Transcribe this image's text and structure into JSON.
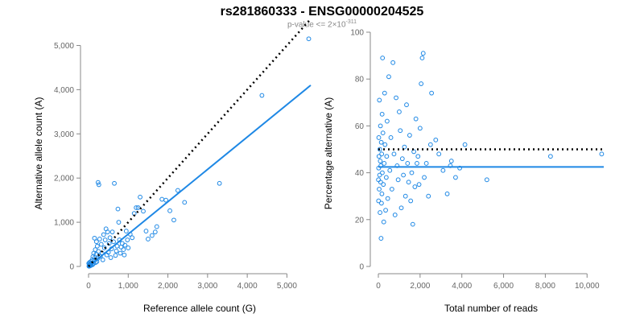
{
  "header": {
    "title": "rs281860333 - ENSG00000204525",
    "subtitle_base": "p-value <= 2×10",
    "subtitle_exp": "-311"
  },
  "colors": {
    "points": "#1e88e5",
    "fit": "#1e88e5",
    "reference": "#000000",
    "axis": "#888888"
  },
  "chart_data": [
    {
      "type": "scatter",
      "xlabel": "Reference allele count (G)",
      "ylabel": "Alternative allele count (A)",
      "xlim": [
        0,
        5600
      ],
      "ylim": [
        0,
        5300
      ],
      "xticks": [
        0,
        1000,
        2000,
        3000,
        4000,
        5000
      ],
      "xtick_labels": [
        "0",
        "1,000",
        "2,000",
        "3,000",
        "4,000",
        "5,000"
      ],
      "yticks": [
        0,
        1000,
        2000,
        3000,
        4000,
        5000
      ],
      "ytick_labels": [
        "0",
        "1,000",
        "2,000",
        "3,000",
        "4,000",
        "5,000"
      ],
      "grid": false,
      "fit_line": {
        "x": [
          0,
          5600
        ],
        "y": [
          0,
          4100
        ]
      },
      "reference_line": {
        "x": [
          0,
          5600
        ],
        "y": [
          0,
          5600
        ],
        "style": "dotted"
      },
      "points": [
        [
          5550,
          5150
        ],
        [
          4370,
          3870
        ],
        [
          3300,
          1880
        ],
        [
          2420,
          1450
        ],
        [
          2250,
          1720
        ],
        [
          2150,
          1050
        ],
        [
          2050,
          1260
        ],
        [
          1950,
          1500
        ],
        [
          1850,
          1520
        ],
        [
          1720,
          900
        ],
        [
          1680,
          780
        ],
        [
          1600,
          700
        ],
        [
          1500,
          620
        ],
        [
          1450,
          800
        ],
        [
          1380,
          1250
        ],
        [
          1300,
          1570
        ],
        [
          1250,
          1330
        ],
        [
          1200,
          1330
        ],
        [
          1150,
          1200
        ],
        [
          1100,
          650
        ],
        [
          1050,
          730
        ],
        [
          1000,
          420
        ],
        [
          980,
          600
        ],
        [
          950,
          800
        ],
        [
          920,
          480
        ],
        [
          900,
          260
        ],
        [
          880,
          380
        ],
        [
          850,
          520
        ],
        [
          820,
          440
        ],
        [
          800,
          300
        ],
        [
          780,
          600
        ],
        [
          760,
          1000
        ],
        [
          740,
          1300
        ],
        [
          720,
          460
        ],
        [
          700,
          350
        ],
        [
          680,
          250
        ],
        [
          650,
          1880
        ],
        [
          630,
          560
        ],
        [
          600,
          780
        ],
        [
          580,
          400
        ],
        [
          560,
          200
        ],
        [
          540,
          650
        ],
        [
          520,
          520
        ],
        [
          500,
          320
        ],
        [
          480,
          780
        ],
        [
          460,
          260
        ],
        [
          440,
          850
        ],
        [
          420,
          600
        ],
        [
          400,
          420
        ],
        [
          380,
          720
        ],
        [
          360,
          150
        ],
        [
          340,
          300
        ],
        [
          320,
          500
        ],
        [
          300,
          230
        ],
        [
          280,
          620
        ],
        [
          260,
          1850
        ],
        [
          250,
          340
        ],
        [
          240,
          1900
        ],
        [
          230,
          180
        ],
        [
          220,
          460
        ],
        [
          210,
          110
        ],
        [
          200,
          560
        ],
        [
          190,
          280
        ],
        [
          180,
          90
        ],
        [
          170,
          380
        ],
        [
          160,
          200
        ],
        [
          150,
          640
        ],
        [
          140,
          130
        ],
        [
          130,
          300
        ],
        [
          120,
          60
        ],
        [
          110,
          220
        ],
        [
          100,
          40
        ],
        [
          90,
          150
        ],
        [
          80,
          80
        ],
        [
          70,
          30
        ],
        [
          60,
          110
        ],
        [
          50,
          20
        ],
        [
          40,
          60
        ],
        [
          30,
          10
        ],
        [
          25,
          90
        ],
        [
          20,
          40
        ],
        [
          15,
          20
        ],
        [
          10,
          5
        ],
        [
          5,
          70
        ]
      ]
    },
    {
      "type": "scatter",
      "xlabel": "Total number of reads",
      "ylabel": "Percentage alternative (A)",
      "xlim": [
        0,
        10800
      ],
      "ylim": [
        0,
        100
      ],
      "xticks": [
        0,
        2000,
        4000,
        6000,
        8000,
        10000
      ],
      "xtick_labels": [
        "0",
        "2,000",
        "4,000",
        "6,000",
        "8,000",
        "10,000"
      ],
      "yticks": [
        0,
        20,
        40,
        60,
        80,
        100
      ],
      "ytick_labels": [
        "0",
        "20",
        "40",
        "60",
        "80",
        "100"
      ],
      "grid": false,
      "fit_line": {
        "x": [
          0,
          10800
        ],
        "y": [
          42.5,
          42.5
        ]
      },
      "reference_line": {
        "x": [
          0,
          10800
        ],
        "y": [
          50,
          50
        ],
        "style": "dotted"
      },
      "points": [
        [
          10700,
          48
        ],
        [
          8250,
          47
        ],
        [
          5200,
          37
        ],
        [
          4150,
          52
        ],
        [
          3900,
          42
        ],
        [
          3700,
          38
        ],
        [
          3500,
          45
        ],
        [
          3450,
          43
        ],
        [
          3300,
          31
        ],
        [
          3100,
          41
        ],
        [
          2900,
          48
        ],
        [
          2750,
          54
        ],
        [
          2550,
          74
        ],
        [
          2500,
          52
        ],
        [
          2400,
          30
        ],
        [
          2300,
          44
        ],
        [
          2200,
          38
        ],
        [
          2150,
          91
        ],
        [
          2100,
          89
        ],
        [
          2050,
          78
        ],
        [
          2000,
          59
        ],
        [
          1950,
          35
        ],
        [
          1900,
          47
        ],
        [
          1850,
          44
        ],
        [
          1800,
          63
        ],
        [
          1750,
          34
        ],
        [
          1700,
          49
        ],
        [
          1650,
          18
        ],
        [
          1600,
          40
        ],
        [
          1550,
          28
        ],
        [
          1500,
          56
        ],
        [
          1450,
          36
        ],
        [
          1400,
          44
        ],
        [
          1350,
          69
        ],
        [
          1300,
          30
        ],
        [
          1250,
          51
        ],
        [
          1200,
          39
        ],
        [
          1150,
          46
        ],
        [
          1100,
          25
        ],
        [
          1050,
          58
        ],
        [
          1000,
          66
        ],
        [
          950,
          37
        ],
        [
          900,
          43
        ],
        [
          850,
          72
        ],
        [
          800,
          22
        ],
        [
          750,
          48
        ],
        [
          700,
          87
        ],
        [
          650,
          33
        ],
        [
          600,
          55
        ],
        [
          550,
          41
        ],
        [
          500,
          81
        ],
        [
          450,
          29
        ],
        [
          420,
          62
        ],
        [
          400,
          47
        ],
        [
          380,
          38
        ],
        [
          350,
          24
        ],
        [
          320,
          52
        ],
        [
          300,
          74
        ],
        [
          280,
          44
        ],
        [
          260,
          19
        ],
        [
          240,
          35
        ],
        [
          220,
          57
        ],
        [
          200,
          89
        ],
        [
          190,
          40
        ],
        [
          180,
          65
        ],
        [
          170,
          31
        ],
        [
          160,
          48
        ],
        [
          150,
          27
        ],
        [
          140,
          53
        ],
        [
          130,
          12
        ],
        [
          120,
          43
        ],
        [
          110,
          36
        ],
        [
          100,
          60
        ],
        [
          90,
          45
        ],
        [
          80,
          23
        ],
        [
          70,
          50
        ],
        [
          60,
          39
        ],
        [
          50,
          71
        ],
        [
          40,
          33
        ],
        [
          30,
          47
        ],
        [
          20,
          55
        ],
        [
          15,
          42
        ],
        [
          10,
          28
        ],
        [
          5,
          37
        ]
      ]
    }
  ]
}
